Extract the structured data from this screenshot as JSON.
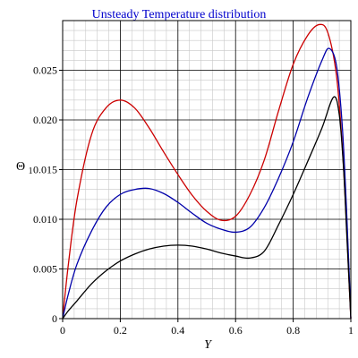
{
  "chart_data": {
    "type": "line",
    "title": "Unsteady Temperature distribution",
    "xlabel": "Y",
    "ylabel": "Θ",
    "ylabel_subscript": "1",
    "xlim": [
      0,
      1
    ],
    "ylim": [
      0,
      0.03
    ],
    "x_ticks": [
      0,
      0.2,
      0.4,
      0.6,
      0.8,
      1
    ],
    "x_tick_labels": [
      "0",
      "0.2",
      "0.4",
      "0.6",
      "0.8",
      "1"
    ],
    "y_ticks": [
      0,
      0.005,
      0.01,
      0.015,
      0.02,
      0.025
    ],
    "y_tick_labels": [
      "0",
      "0.005",
      "0.010",
      "0.015",
      "0.020",
      "0.025"
    ],
    "grid": true,
    "legend": "none",
    "colors": {
      "title": "#0000cc",
      "grid_major": "#000000",
      "grid_minor": "#c8c8c8",
      "axes": "#000000"
    },
    "series": [
      {
        "color": "#cc0000",
        "x": [
          0,
          0.02,
          0.05,
          0.1,
          0.15,
          0.2,
          0.25,
          0.3,
          0.35,
          0.4,
          0.45,
          0.5,
          0.55,
          0.6,
          0.65,
          0.7,
          0.75,
          0.8,
          0.85,
          0.89,
          0.92,
          0.95,
          0.97,
          0.985,
          0.995,
          1
        ],
        "y": [
          0,
          0.0055,
          0.012,
          0.0185,
          0.0212,
          0.022,
          0.0212,
          0.0192,
          0.0168,
          0.0145,
          0.0124,
          0.0108,
          0.0099,
          0.0103,
          0.0125,
          0.016,
          0.021,
          0.0256,
          0.0285,
          0.0296,
          0.0288,
          0.0245,
          0.0175,
          0.0095,
          0.003,
          0
        ]
      },
      {
        "color": "#0000aa",
        "x": [
          0,
          0.02,
          0.05,
          0.1,
          0.15,
          0.2,
          0.25,
          0.3,
          0.35,
          0.4,
          0.45,
          0.5,
          0.55,
          0.6,
          0.65,
          0.7,
          0.75,
          0.8,
          0.85,
          0.9,
          0.925,
          0.95,
          0.97,
          0.985,
          0.995,
          1
        ],
        "y": [
          0,
          0.0025,
          0.0055,
          0.0088,
          0.0112,
          0.0125,
          0.013,
          0.0131,
          0.0126,
          0.0117,
          0.0106,
          0.0096,
          0.009,
          0.0087,
          0.0092,
          0.0112,
          0.0142,
          0.0178,
          0.0222,
          0.026,
          0.0272,
          0.0255,
          0.0195,
          0.011,
          0.004,
          0
        ]
      },
      {
        "color": "#000000",
        "x": [
          0,
          0.02,
          0.05,
          0.1,
          0.15,
          0.2,
          0.25,
          0.3,
          0.35,
          0.4,
          0.45,
          0.5,
          0.55,
          0.6,
          0.65,
          0.7,
          0.75,
          0.8,
          0.85,
          0.9,
          0.94,
          0.96,
          0.975,
          0.985,
          0.995,
          1
        ],
        "y": [
          0,
          0.0008,
          0.0018,
          0.0035,
          0.0048,
          0.0058,
          0.0065,
          0.007,
          0.0073,
          0.0074,
          0.0073,
          0.007,
          0.0066,
          0.0063,
          0.0061,
          0.0068,
          0.0095,
          0.0125,
          0.0158,
          0.0192,
          0.0223,
          0.0205,
          0.015,
          0.009,
          0.003,
          0
        ]
      }
    ]
  }
}
